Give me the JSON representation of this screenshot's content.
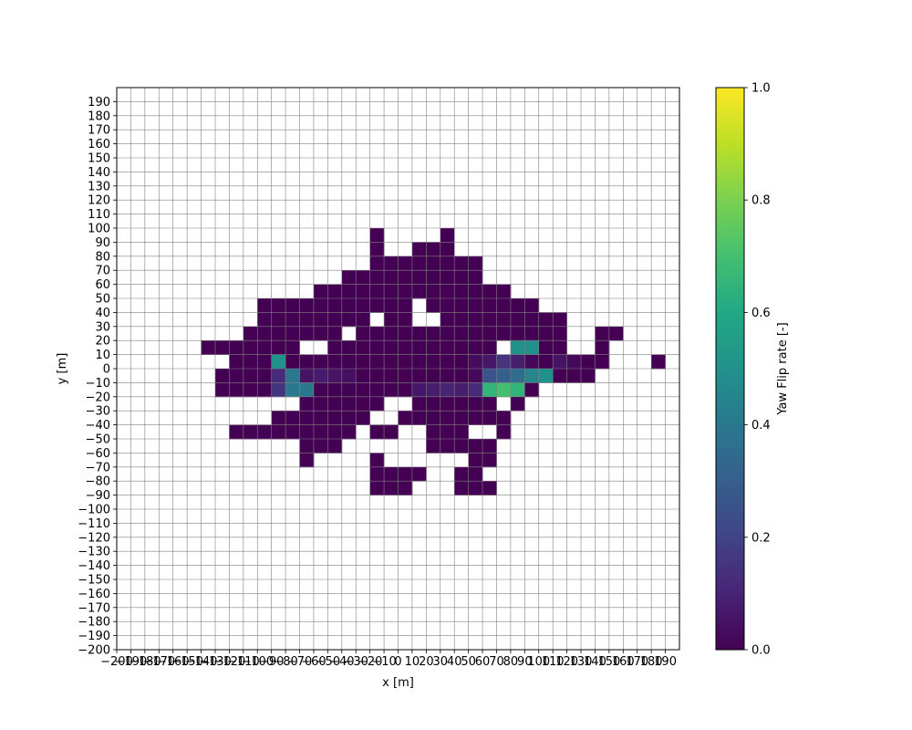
{
  "chart_data": {
    "type": "heatmap",
    "xlabel": "x [m]",
    "ylabel": "y [m]",
    "colorbar_label": "Yaw Flip rate [-]",
    "colormap": "viridis",
    "xlim": [
      -200,
      190
    ],
    "ylim": [
      -200,
      190
    ],
    "cell_size": 10,
    "clim": [
      0,
      1
    ],
    "colorbar_ticks": [
      "0.0",
      "0.2",
      "0.4",
      "0.6",
      "0.8",
      "1.0"
    ],
    "grid": true,
    "x_ticks": [
      -200,
      -190,
      -180,
      -170,
      -160,
      -150,
      -140,
      -130,
      -120,
      -110,
      -100,
      -90,
      -80,
      -70,
      -60,
      -50,
      -40,
      -30,
      -20,
      -10,
      0,
      10,
      20,
      30,
      40,
      50,
      60,
      70,
      80,
      90,
      100,
      110,
      120,
      130,
      140,
      150,
      160,
      170,
      180,
      190
    ],
    "y_ticks": [
      -200,
      -190,
      -180,
      -170,
      -160,
      -150,
      -140,
      -130,
      -120,
      -110,
      -100,
      -90,
      -80,
      -70,
      -60,
      -50,
      -40,
      -30,
      -20,
      -10,
      0,
      10,
      20,
      30,
      40,
      50,
      60,
      70,
      80,
      90,
      100,
      110,
      120,
      130,
      140,
      150,
      160,
      170,
      180,
      190
    ],
    "cells": [
      {
        "y": 90,
        "x": [
          -20
        ],
        "v": [
          0
        ]
      },
      {
        "y": 90,
        "x": [
          30
        ],
        "v": [
          0
        ]
      },
      {
        "y": 80,
        "x": [
          -20,
          10,
          20,
          30
        ],
        "v": [
          0,
          0,
          0,
          0
        ]
      },
      {
        "y": 70,
        "x": [
          -20,
          -10,
          0,
          10,
          20,
          30,
          40,
          50
        ],
        "v": [
          0,
          0,
          0,
          0,
          0,
          0,
          0,
          0
        ]
      },
      {
        "y": 60,
        "x": [
          -40,
          -30,
          -20,
          -10,
          0,
          10,
          20,
          30,
          40,
          50
        ],
        "v": [
          0,
          0,
          0,
          0,
          0,
          0,
          0,
          0,
          0,
          0
        ]
      },
      {
        "y": 50,
        "x": [
          -60,
          -50,
          -40,
          -30,
          -20,
          -10,
          0,
          10,
          20,
          30,
          40,
          50,
          60,
          70
        ],
        "v": [
          0,
          0,
          0,
          0,
          0,
          0,
          0,
          0,
          0,
          0,
          0,
          0,
          0,
          0
        ]
      },
      {
        "y": 40,
        "x": [
          -100,
          -90,
          -80,
          -70,
          -60,
          -50,
          -40,
          -30,
          -20,
          -10,
          0,
          20,
          30,
          40,
          50,
          60,
          70,
          80,
          90
        ],
        "v": [
          0,
          0,
          0,
          0,
          0,
          0,
          0,
          0,
          0,
          0,
          0,
          0,
          0,
          0,
          0,
          0,
          0,
          0,
          0
        ]
      },
      {
        "y": 30,
        "x": [
          -100,
          -90,
          -80,
          -70,
          -60,
          -50,
          -40,
          -30,
          -10,
          0,
          30,
          40,
          50,
          60,
          70,
          80,
          90,
          100,
          110
        ],
        "v": [
          0,
          0,
          0,
          0,
          0,
          0,
          0,
          0,
          0,
          0,
          0,
          0,
          0,
          0,
          0,
          0,
          0,
          0,
          0
        ]
      },
      {
        "y": 20,
        "x": [
          -110,
          -100,
          -90,
          -80,
          -70,
          -60,
          -50,
          -30,
          -20,
          -10,
          0,
          10,
          20,
          30,
          40,
          50,
          60,
          70,
          80,
          90,
          100,
          110,
          140,
          150
        ],
        "v": [
          0,
          0,
          0,
          0,
          0,
          0,
          0,
          0,
          0,
          0,
          0,
          0,
          0,
          0,
          0,
          0,
          0,
          0,
          0,
          0,
          0,
          0,
          0,
          0
        ]
      },
      {
        "y": 10,
        "x": [
          -140,
          -130,
          -120,
          -110,
          -100,
          -90,
          -80,
          -50,
          -40,
          -30,
          -20,
          -10,
          0,
          10,
          20,
          30,
          40,
          50,
          60,
          80,
          90,
          100,
          110,
          140
        ],
        "v": [
          0,
          0,
          0,
          0,
          0,
          0,
          0,
          0,
          0,
          0,
          0,
          0,
          0,
          0,
          0,
          0,
          0,
          0,
          0,
          0.5,
          0.5,
          0,
          0,
          0
        ]
      },
      {
        "y": 0,
        "x": [
          -120,
          -110,
          -100,
          -90,
          -80,
          -70,
          -60,
          -50,
          -40,
          -30,
          -20,
          -10,
          0,
          10,
          20,
          30,
          40,
          50,
          60,
          70,
          80,
          90,
          100,
          110,
          120,
          130,
          140,
          180
        ],
        "v": [
          0,
          0,
          0,
          0.5,
          0,
          0,
          0,
          0,
          0,
          0,
          0,
          0,
          0,
          0,
          0,
          0,
          0,
          0.03,
          0.06,
          0.15,
          0.08,
          0.02,
          0,
          0.05,
          0.02,
          0,
          0,
          0
        ]
      },
      {
        "y": -10,
        "x": [
          -130,
          -120,
          -110,
          -100,
          -90,
          -80,
          -70,
          -60,
          -50,
          -40,
          -30,
          -20,
          -10,
          0,
          10,
          20,
          30,
          40,
          50,
          60,
          70,
          80,
          90,
          100,
          110,
          120,
          130
        ],
        "v": [
          0,
          0,
          0,
          0,
          0.12,
          0.4,
          0.05,
          0.07,
          0.05,
          0.04,
          0,
          0,
          0,
          0,
          0,
          0,
          0,
          0,
          0.02,
          0.25,
          0.3,
          0.35,
          0.45,
          0.5,
          0,
          0,
          0
        ]
      },
      {
        "y": -20,
        "x": [
          -130,
          -120,
          -110,
          -100,
          -90,
          -80,
          -70,
          -60,
          -50,
          -40,
          -30,
          -20,
          -10,
          0,
          10,
          20,
          30,
          40,
          50,
          60,
          70,
          80,
          90
        ],
        "v": [
          0,
          0,
          0,
          0,
          0.15,
          0.4,
          0.4,
          0,
          0,
          0,
          0,
          0,
          0,
          0,
          0.06,
          0.08,
          0.1,
          0.08,
          0.12,
          0.65,
          0.7,
          0.65,
          0
        ]
      },
      {
        "y": -30,
        "x": [
          -70,
          -60,
          -50,
          -40,
          -30,
          -20,
          10,
          20,
          30,
          40,
          50,
          60,
          80
        ],
        "v": [
          0,
          0,
          0,
          0,
          0,
          0,
          0,
          0,
          0,
          0,
          0,
          0,
          0
        ]
      },
      {
        "y": -40,
        "x": [
          -90,
          -80,
          -70,
          -60,
          -50,
          -40,
          -30,
          0,
          10,
          20,
          30,
          40,
          50,
          60,
          70
        ],
        "v": [
          0,
          0,
          0,
          0,
          0,
          0,
          0,
          0,
          0,
          0,
          0,
          0,
          0,
          0,
          0
        ]
      },
      {
        "y": -50,
        "x": [
          -120,
          -110,
          -100,
          -90,
          -80,
          -70,
          -60,
          -50,
          -40,
          -20,
          -10,
          20,
          30,
          40,
          70
        ],
        "v": [
          0,
          0,
          0,
          0,
          0,
          0,
          0,
          0,
          0,
          0,
          0,
          0,
          0,
          0,
          0
        ]
      },
      {
        "y": -60,
        "x": [
          -70,
          -60,
          -50,
          20,
          30,
          40,
          50,
          60
        ],
        "v": [
          0,
          0,
          0,
          0,
          0,
          0,
          0,
          0
        ]
      },
      {
        "y": -70,
        "x": [
          -70,
          -20,
          50,
          60
        ],
        "v": [
          0,
          0,
          0,
          0
        ]
      },
      {
        "y": -80,
        "x": [
          -20,
          -10,
          0,
          10,
          40,
          50
        ],
        "v": [
          0,
          0,
          0,
          0,
          0,
          0
        ]
      },
      {
        "y": -90,
        "x": [
          -20,
          -10,
          0,
          40,
          50,
          60
        ],
        "v": [
          0,
          0,
          0,
          0,
          0,
          0
        ]
      }
    ]
  }
}
